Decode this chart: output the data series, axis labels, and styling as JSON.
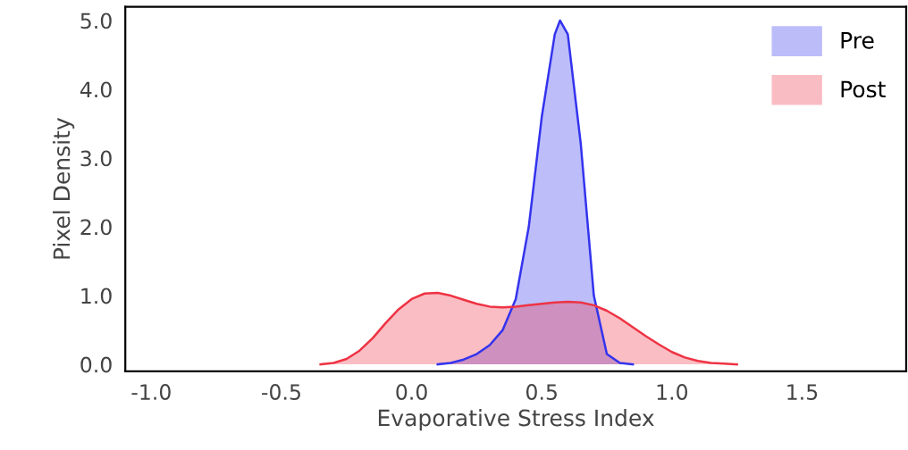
{
  "chart_data": {
    "type": "area",
    "xlabel": "Evaporative Stress Index",
    "ylabel": "Pixel Density",
    "xlim": [
      -1.1,
      1.9
    ],
    "ylim": [
      -0.1,
      5.2
    ],
    "xticks": [
      {
        "value": -1.0,
        "label": "-1.0"
      },
      {
        "value": -0.5,
        "label": "-0.5"
      },
      {
        "value": 0.0,
        "label": "0.0"
      },
      {
        "value": 0.5,
        "label": "0.5"
      },
      {
        "value": 1.0,
        "label": "1.0"
      },
      {
        "value": 1.5,
        "label": "1.5"
      }
    ],
    "yticks": [
      {
        "value": 0.0,
        "label": "0.0"
      },
      {
        "value": 1.0,
        "label": "1.0"
      },
      {
        "value": 2.0,
        "label": "2.0"
      },
      {
        "value": 3.0,
        "label": "3.0"
      },
      {
        "value": 4.0,
        "label": "4.0"
      },
      {
        "value": 5.0,
        "label": "5.0"
      }
    ],
    "grid": false,
    "legend": "top right",
    "series": [
      {
        "name": "Pre",
        "color": "#3333ee",
        "x": [
          0.1,
          0.15,
          0.2,
          0.25,
          0.3,
          0.35,
          0.4,
          0.45,
          0.5,
          0.55,
          0.57,
          0.6,
          0.65,
          0.7,
          0.75,
          0.8,
          0.85
        ],
        "values": [
          0,
          0.02,
          0.07,
          0.15,
          0.28,
          0.5,
          0.95,
          2.0,
          3.6,
          4.8,
          5.0,
          4.8,
          3.2,
          1.0,
          0.15,
          0.02,
          0
        ]
      },
      {
        "name": "Post",
        "color": "#ee3344",
        "x": [
          -0.35,
          -0.3,
          -0.25,
          -0.2,
          -0.15,
          -0.1,
          -0.05,
          0.0,
          0.05,
          0.1,
          0.15,
          0.2,
          0.25,
          0.3,
          0.35,
          0.4,
          0.45,
          0.5,
          0.55,
          0.6,
          0.65,
          0.7,
          0.75,
          0.8,
          0.85,
          0.9,
          0.95,
          1.0,
          1.05,
          1.1,
          1.15,
          1.2,
          1.25
        ],
        "values": [
          0,
          0.02,
          0.08,
          0.2,
          0.38,
          0.6,
          0.8,
          0.95,
          1.03,
          1.04,
          1.0,
          0.94,
          0.88,
          0.84,
          0.83,
          0.84,
          0.86,
          0.88,
          0.9,
          0.91,
          0.9,
          0.86,
          0.78,
          0.67,
          0.54,
          0.41,
          0.29,
          0.18,
          0.1,
          0.05,
          0.02,
          0.01,
          0
        ]
      }
    ]
  }
}
